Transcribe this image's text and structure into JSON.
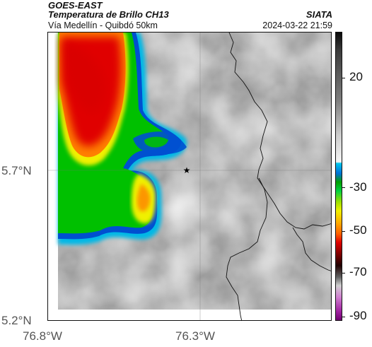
{
  "header": {
    "source": "GOES-EAST",
    "product": "Temperatura de Brillo CH13",
    "organization": "SIATA",
    "route": "Vía Medellín - Quibdó 50km",
    "datetime": "2024-03-22 21:59"
  },
  "axes": {
    "lat_labels": [
      "5.7°N",
      "5.2°N"
    ],
    "lon_labels": [
      "76.8°W",
      "76.3°W"
    ]
  },
  "colorbar": {
    "labels": [
      "20",
      "-30",
      "-50",
      "-70",
      "-90"
    ],
    "values": [
      20,
      -30,
      -50,
      -70,
      -90
    ],
    "range": [
      -95,
      45
    ],
    "colors": {
      "warm": "#f2f2f2",
      "cold_cyan": "#00b8e6",
      "blue": "#0050d0",
      "green": "#00c000",
      "yellow": "#f0f000",
      "orange": "#ff8000",
      "red": "#e00000",
      "dark": "#300000",
      "magenta": "#c040c0"
    }
  },
  "map": {
    "marker": "star-icon",
    "features": [
      "cloud-top-field",
      "department-borders",
      "graticule"
    ]
  }
}
